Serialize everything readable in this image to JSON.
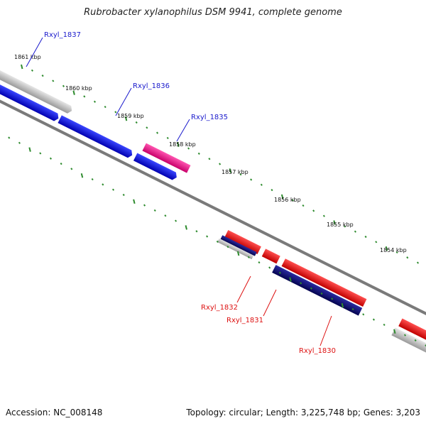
{
  "title": "Rubrobacter xylanophilus DSM 9941, complete genome",
  "footer": {
    "accession": "Accession: NC_008148",
    "topology": "Topology: circular; Length: 3,225,748 bp; Genes: 3,203"
  },
  "colors": {
    "backbone": "#808080",
    "tick": "#2e8b2e",
    "label_top": "#1a1acc",
    "label_bottom": "#dd1111",
    "blue": "#0a14e6",
    "navy": "#0a0a78",
    "magenta": "#f0148c",
    "red": "#f00a0a",
    "gray": "#bdbdbd"
  },
  "scale_labels": [
    "1861 kbp",
    "1860 kbp",
    "1859 kbp",
    "1858 kbp",
    "1857 kbp",
    "1856 kbp",
    "1855 kbp",
    "1854 kbp"
  ],
  "gene_labels": [
    {
      "text": "Rxyl_1837",
      "side": "top"
    },
    {
      "text": "Rxyl_1836",
      "side": "top"
    },
    {
      "text": "Rxyl_1835",
      "side": "top"
    },
    {
      "text": "Rxyl_1832",
      "side": "bottom"
    },
    {
      "text": "Rxyl_1831",
      "side": "bottom"
    },
    {
      "text": "Rxyl_1830",
      "side": "bottom"
    }
  ]
}
